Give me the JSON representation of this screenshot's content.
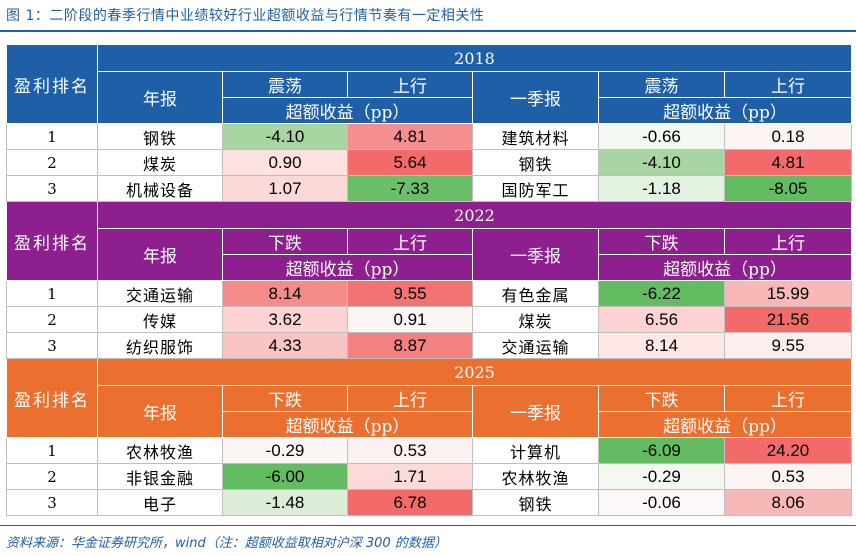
{
  "title": "图 1：二阶段的春季行情中业绩较好行业超额收益与行情节奏有一定相关性",
  "source": "资料来源：华金证券研究所，wind（注：超额收益取相对沪深 300 的数据）",
  "colors": {
    "2018": "#1f5fa8",
    "2022": "#8e1f8e",
    "2025": "#eb7030"
  },
  "headers": {
    "rank": "盈利排名",
    "annual": "年报",
    "q1": "一季报",
    "excess": "超额收益（pp）"
  },
  "blocks": [
    {
      "year": "2018",
      "annual_phases": [
        "震荡",
        "上行"
      ],
      "q1_phases": [
        "震荡",
        "上行"
      ],
      "rows": [
        {
          "rank": "1",
          "annual_industry": "钢铁",
          "a1": "-4.10",
          "a1c": "#a9d5a3",
          "a2": "4.81",
          "a2c": "#f58e8e",
          "q1_industry": "建筑材料",
          "q1a": "-0.66",
          "q1ac": "#f3f9f1",
          "q1b": "0.18",
          "q1bc": "#fdf4f4"
        },
        {
          "rank": "2",
          "annual_industry": "煤炭",
          "a1": "0.90",
          "a1c": "#fde0e0",
          "a2": "5.64",
          "a2c": "#f26a6a",
          "q1_industry": "钢铁",
          "q1a": "-4.10",
          "q1ac": "#a9d5a3",
          "q1b": "4.81",
          "q1bc": "#f26a6a"
        },
        {
          "rank": "3",
          "annual_industry": "机械设备",
          "a1": "1.07",
          "a1c": "#fcd9d9",
          "a2": "-7.33",
          "a2c": "#6cbf69",
          "q1_industry": "国防军工",
          "q1a": "-1.18",
          "q1ac": "#e3f1e0",
          "q1b": "-8.05",
          "q1bc": "#63bb62"
        }
      ]
    },
    {
      "year": "2022",
      "annual_phases": [
        "下跌",
        "上行"
      ],
      "q1_phases": [
        "下跌",
        "上行"
      ],
      "rows": [
        {
          "rank": "1",
          "annual_industry": "交通运输",
          "a1": "8.14",
          "a1c": "#f58b8b",
          "a2": "9.55",
          "a2c": "#f37373",
          "q1_industry": "有色金属",
          "q1a": "-6.22",
          "q1ac": "#63bb62",
          "q1b": "15.99",
          "q1bc": "#f9b8b8"
        },
        {
          "rank": "2",
          "annual_industry": "传媒",
          "a1": "3.62",
          "a1c": "#fcd2d2",
          "a2": "0.91",
          "a2c": "#fdf4f4",
          "q1_industry": "煤炭",
          "q1a": "6.56",
          "q1ac": "#fcd2d2",
          "q1b": "21.56",
          "q1bc": "#f26a6a"
        },
        {
          "rank": "3",
          "annual_industry": "纺织服饰",
          "a1": "4.33",
          "a1c": "#fbc4c4",
          "a2": "8.87",
          "a2c": "#f48080",
          "q1_industry": "交通运输",
          "q1a": "8.14",
          "q1ac": "#fde6e6",
          "q1b": "9.55",
          "q1bc": "#fdeeee"
        }
      ]
    },
    {
      "year": "2025",
      "annual_phases": [
        "下跌",
        "上行"
      ],
      "q1_phases": [
        "下跌",
        "上行"
      ],
      "rows": [
        {
          "rank": "1",
          "annual_industry": "农林牧渔",
          "a1": "-0.29",
          "a1c": "#fdf6f6",
          "a2": "0.53",
          "a2c": "#fdf2f2",
          "q1_industry": "计算机",
          "q1a": "-6.09",
          "q1ac": "#63bb62",
          "q1b": "24.20",
          "q1bc": "#f26a6a"
        },
        {
          "rank": "2",
          "annual_industry": "非银金融",
          "a1": "-6.00",
          "a1c": "#63bb62",
          "a2": "1.71",
          "a2c": "#fcdada",
          "q1_industry": "农林牧渔",
          "q1a": "-0.29",
          "q1ac": "#f3f9f1",
          "q1b": "0.53",
          "q1bc": "#fdf4f4"
        },
        {
          "rank": "3",
          "annual_industry": "电子",
          "a1": "-1.48",
          "a1c": "#dcecd7",
          "a2": "6.78",
          "a2c": "#f26a6a",
          "q1_industry": "钢铁",
          "q1a": "-0.06",
          "q1ac": "#fdf8f8",
          "q1b": "8.06",
          "q1bc": "#f9b8b8"
        }
      ]
    }
  ]
}
